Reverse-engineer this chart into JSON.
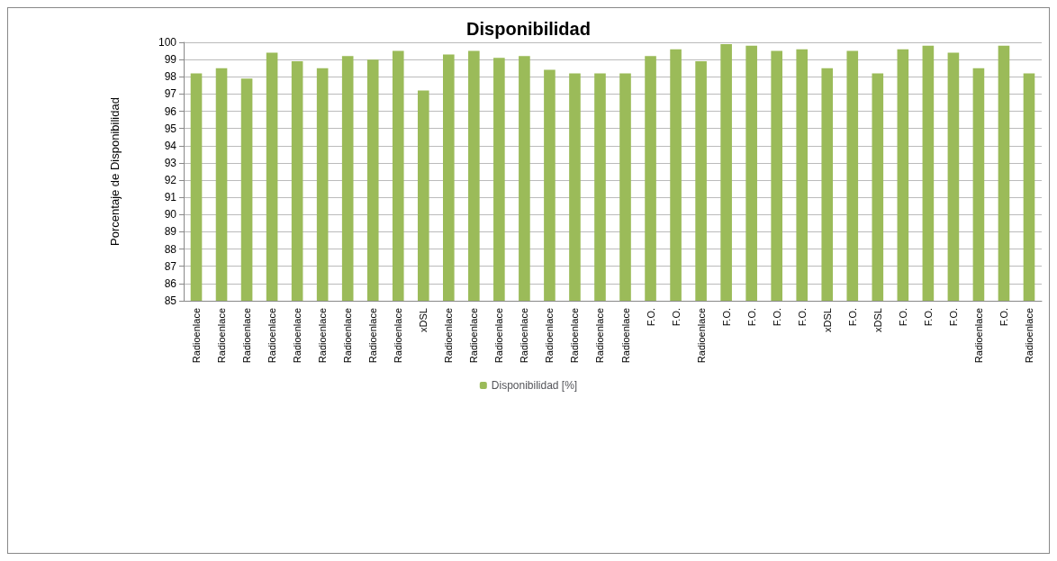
{
  "chart_data": {
    "type": "bar",
    "title": "Disponibilidad",
    "ylabel": "Porcentaje de Disponibilidad",
    "categories": [
      "Radioenlace",
      "Radioenlace",
      "Radioenlace",
      "Radioenlace",
      "Radioenlace",
      "Radioenlace",
      "Radioenlace",
      "Radioenlace",
      "Radioenlace",
      "xDSL",
      "Radioenlace",
      "Radioenlace",
      "Radioenlace",
      "Radioenlace",
      "Radioenlace",
      "Radioenlace",
      "Radioenlace",
      "Radioenlace",
      "F.O.",
      "F.O.",
      "Radioenlace",
      "F.O.",
      "F.O.",
      "F.O.",
      "F.O.",
      "xDSL",
      "F.O.",
      "xDSL",
      "F.O.",
      "F.O.",
      "F.O.",
      "Radioenlace",
      "F.O.",
      "Radioenlace"
    ],
    "series": [
      {
        "name": "Disponibilidad [%]",
        "color": "#9bbb59",
        "values": [
          98.2,
          98.5,
          97.9,
          99.4,
          98.9,
          98.5,
          99.2,
          99.0,
          99.5,
          97.2,
          99.3,
          99.5,
          99.1,
          99.2,
          98.4,
          98.2,
          98.2,
          98.2,
          99.2,
          99.6,
          98.9,
          99.9,
          99.8,
          99.5,
          99.6,
          98.5,
          99.5,
          98.2,
          99.6,
          99.8,
          99.4,
          98.5,
          99.8,
          98.2
        ]
      }
    ],
    "ylim": [
      85,
      100
    ],
    "yticks": [
      85,
      86,
      87,
      88,
      89,
      90,
      91,
      92,
      93,
      94,
      95,
      96,
      97,
      98,
      99,
      100
    ],
    "grid": "y",
    "legend": "bottom"
  }
}
